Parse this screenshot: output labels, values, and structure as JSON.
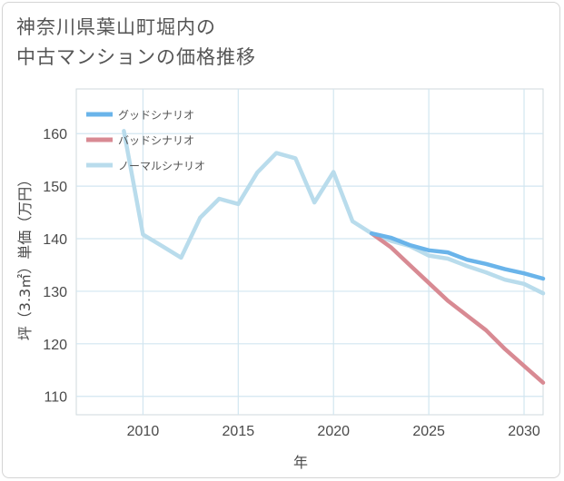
{
  "title_line1": "神奈川県葉山町堀内の",
  "title_line2": "中古マンションの価格推移",
  "chart_data": {
    "type": "line",
    "xlabel": "年",
    "ylabel": "坪（3.3㎡）単価（万円）",
    "xlim": [
      2006.5,
      2031
    ],
    "ylim": [
      106.5,
      168.5
    ],
    "xticks": [
      2010,
      2015,
      2020,
      2025,
      2030
    ],
    "yticks": [
      110,
      120,
      130,
      140,
      150,
      160
    ],
    "grid": true,
    "legend_position": "top-left",
    "series": [
      {
        "name": "グッドシナリオ",
        "color": "#6ab4ea",
        "x": [
          2022,
          2023,
          2024,
          2025,
          2026,
          2027,
          2028,
          2029,
          2030,
          2031
        ],
        "y": [
          141.0,
          140.2,
          138.8,
          137.8,
          137.4,
          136.0,
          135.2,
          134.2,
          133.4,
          132.4
        ]
      },
      {
        "name": "バッドシナリオ",
        "color": "#d88a93",
        "x": [
          2022,
          2023,
          2024,
          2025,
          2026,
          2027,
          2028,
          2029,
          2030,
          2031
        ],
        "y": [
          141.0,
          138.4,
          135.0,
          131.6,
          128.2,
          125.4,
          122.6,
          119.0,
          115.8,
          112.6
        ]
      },
      {
        "name": "ノーマルシナリオ",
        "color": "#b9dcec",
        "x": [
          2009,
          2010,
          2011,
          2012,
          2013,
          2014,
          2015,
          2016,
          2017,
          2018,
          2019,
          2020,
          2021,
          2022,
          2023,
          2024,
          2025,
          2026,
          2027,
          2028,
          2029,
          2030,
          2031
        ],
        "y": [
          160.5,
          140.8,
          138.6,
          136.4,
          144.0,
          147.6,
          146.6,
          152.6,
          156.3,
          155.3,
          146.9,
          152.7,
          143.3,
          141.0,
          139.6,
          138.6,
          136.8,
          136.2,
          134.8,
          133.6,
          132.2,
          131.4,
          129.6
        ]
      }
    ]
  }
}
